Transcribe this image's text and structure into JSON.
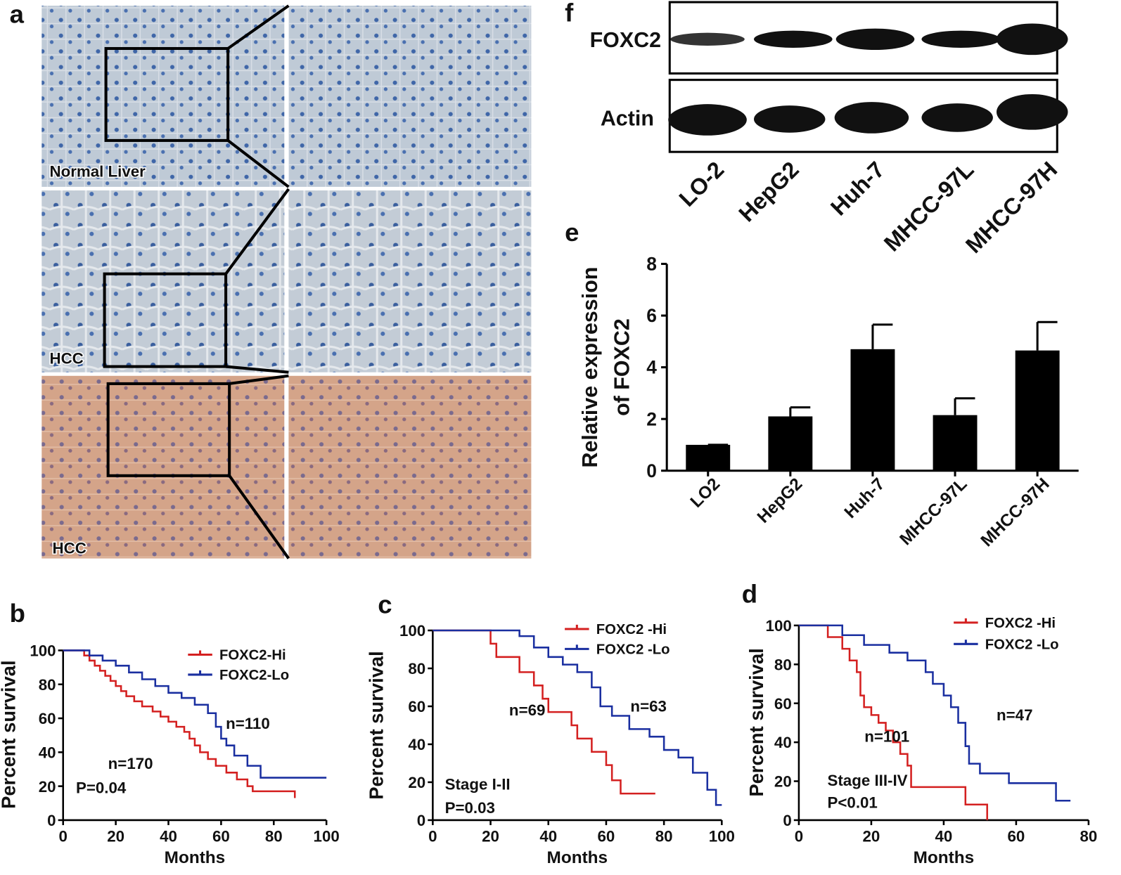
{
  "panel_labels": [
    "a",
    "f",
    "e",
    "b",
    "c",
    "d"
  ],
  "micrographs": {
    "labels": [
      "Normal Liver",
      "HCC",
      "HCC"
    ]
  },
  "western_blot": {
    "rows": [
      "FOXC2",
      "Actin"
    ],
    "lanes": [
      "LO-2",
      "HepG2",
      "Huh-7",
      "MHCC-97L",
      "MHCC-97H"
    ]
  },
  "chart_data": [
    {
      "type": "bar",
      "y_label": [
        "Relative expression",
        "of FOXC2"
      ],
      "categories": [
        "LO2",
        "HepG2",
        "Huh-7",
        "MHCC-97L",
        "MHCC-97H"
      ],
      "values": [
        1,
        2.1,
        4.7,
        2.15,
        4.65
      ],
      "errors": [
        0,
        0.35,
        0.95,
        0.65,
        1.1
      ],
      "color": "#000000",
      "ylim": [
        0,
        8
      ],
      "yticks": [
        0,
        2,
        4,
        6,
        8
      ]
    },
    {
      "type": "line",
      "step": true,
      "x_label": "Months",
      "y_label": "Percent survival",
      "xlim": [
        0,
        100
      ],
      "xticks": [
        0,
        20,
        40,
        60,
        80,
        100
      ],
      "ylim": [
        0,
        100
      ],
      "yticks": [
        0,
        20,
        40,
        60,
        80,
        100
      ],
      "series": [
        {
          "name": "FOXC2-Hi",
          "color": "#d42020",
          "x": [
            0,
            8,
            10,
            12,
            14,
            16,
            18,
            20,
            22,
            24,
            27,
            30,
            34,
            37,
            40,
            43,
            46,
            48,
            50,
            52,
            55,
            58,
            62,
            66,
            70,
            72,
            88
          ],
          "values": [
            100,
            97,
            94,
            91,
            88,
            85,
            82,
            79,
            76,
            73,
            70,
            67,
            64,
            61,
            58,
            55,
            52,
            48,
            44,
            40,
            36,
            32,
            28,
            24,
            20,
            17,
            13
          ]
        },
        {
          "name": "FOXC2-Lo",
          "color": "#1a2fa0",
          "x": [
            0,
            10,
            15,
            20,
            25,
            30,
            35,
            40,
            45,
            50,
            55,
            58,
            60,
            62,
            65,
            70,
            75,
            100
          ],
          "values": [
            100,
            97,
            94,
            91,
            87,
            83,
            79,
            75,
            72,
            68,
            63,
            55,
            48,
            44,
            38,
            32,
            25,
            25
          ]
        }
      ],
      "annotations": [
        {
          "text": "n=170",
          "color": "#d42020"
        },
        {
          "text": "n=110",
          "color": "#1a2fa0"
        },
        {
          "text": "P=0.04",
          "color": "#111111"
        }
      ]
    },
    {
      "type": "line",
      "step": true,
      "x_label": "Months",
      "y_label": "Percent survival",
      "xlim": [
        0,
        100
      ],
      "xticks": [
        0,
        20,
        40,
        60,
        80,
        100
      ],
      "ylim": [
        0,
        100
      ],
      "yticks": [
        0,
        20,
        40,
        60,
        80,
        100
      ],
      "series": [
        {
          "name": "FOXC2 -Hi",
          "color": "#d42020",
          "x": [
            0,
            20,
            22,
            30,
            35,
            38,
            40,
            48,
            50,
            55,
            60,
            62,
            65,
            77
          ],
          "values": [
            100,
            93,
            86,
            78,
            71,
            64,
            57,
            50,
            43,
            36,
            29,
            21,
            14,
            14
          ]
        },
        {
          "name": "FOXC2 -Lo",
          "color": "#1a2fa0",
          "x": [
            0,
            30,
            35,
            40,
            45,
            50,
            55,
            58,
            62,
            68,
            75,
            80,
            85,
            90,
            95,
            98,
            100
          ],
          "values": [
            100,
            97,
            91,
            86,
            82,
            78,
            70,
            60,
            55,
            48,
            44,
            37,
            33,
            25,
            16,
            8,
            8
          ]
        }
      ],
      "annotations": [
        {
          "text": "n=69",
          "color": "#d42020"
        },
        {
          "text": "n=63",
          "color": "#1a2fa0"
        },
        {
          "text": "Stage I-II",
          "color": "#111111"
        },
        {
          "text": "P=0.03",
          "color": "#111111"
        }
      ]
    },
    {
      "type": "line",
      "step": true,
      "x_label": "Months",
      "y_label": "Percent survival",
      "xlim": [
        0,
        80
      ],
      "xticks": [
        0,
        20,
        40,
        60,
        80
      ],
      "ylim": [
        0,
        100
      ],
      "yticks": [
        0,
        20,
        40,
        60,
        80,
        100
      ],
      "series": [
        {
          "name": "FOXC2 -Hi",
          "color": "#d42020",
          "x": [
            0,
            8,
            12,
            14,
            16,
            17,
            18,
            20,
            22,
            24,
            26,
            28,
            30,
            31,
            38,
            46,
            52
          ],
          "values": [
            100,
            94,
            88,
            82,
            76,
            64,
            58,
            54,
            50,
            46,
            40,
            34,
            28,
            17,
            17,
            8,
            0
          ]
        },
        {
          "name": "FOXC2 -Lo",
          "color": "#1a2fa0",
          "x": [
            0,
            12,
            18,
            25,
            30,
            35,
            37,
            40,
            42,
            44,
            46,
            47,
            50,
            58,
            65,
            71,
            75
          ],
          "values": [
            100,
            95,
            90,
            86,
            82,
            76,
            70,
            64,
            58,
            50,
            38,
            29,
            24,
            19,
            19,
            10,
            10
          ]
        }
      ],
      "annotations": [
        {
          "text": "n=101",
          "color": "#d42020"
        },
        {
          "text": "n=47",
          "color": "#1a2fa0"
        },
        {
          "text": "Stage III-IV",
          "color": "#111111"
        },
        {
          "text": "P<0.01",
          "color": "#111111"
        }
      ]
    }
  ]
}
